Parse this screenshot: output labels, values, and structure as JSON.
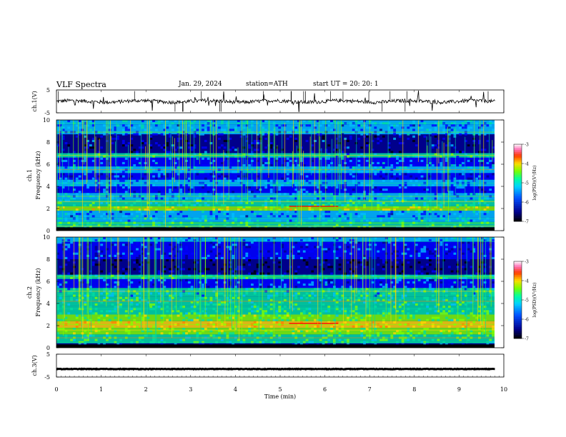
{
  "header": {
    "title": "VLF  Spectra",
    "date": "Jan. 29, 2024",
    "station": "station=ATH",
    "start": "start  UT  =    20: 20: 1"
  },
  "chart_data": [
    {
      "type": "line",
      "name": "ch1-timeseries",
      "ylabel": "ch.1(V)",
      "ylim": [
        -5,
        5
      ],
      "yticks": [
        "5",
        "-5"
      ],
      "xlim": [
        0,
        10
      ],
      "approx_level": 0
    },
    {
      "type": "heatmap",
      "name": "ch1-spectrogram",
      "ylabel": "ch.1\nFrequency (kHz)",
      "ylim": [
        0,
        10
      ],
      "yticks": [
        "0",
        "2",
        "4",
        "6",
        "8",
        "10"
      ],
      "xlim": [
        0,
        9.8
      ],
      "colorbar": {
        "label": "log(PSD)(V²/Hz)",
        "range": [
          -7,
          -3
        ],
        "ticks": [
          "-3",
          "-4",
          "-5",
          "-6",
          "-7"
        ]
      }
    },
    {
      "type": "heatmap",
      "name": "ch2-spectrogram",
      "ylabel": "ch.2\nFrequency (kHz)",
      "ylim": [
        0,
        10
      ],
      "yticks": [
        "0",
        "2",
        "4",
        "6",
        "8",
        "10"
      ],
      "xlim": [
        0,
        9.8
      ],
      "colorbar": {
        "label": "log(PSD)(V²/Hz)",
        "range": [
          -7,
          -3
        ],
        "ticks": [
          "-3",
          "-4",
          "-5",
          "-6",
          "-7"
        ]
      }
    },
    {
      "type": "line",
      "name": "ch3-timeseries",
      "ylabel": "ch.3(V)",
      "ylim": [
        -5,
        5
      ],
      "yticks": [
        "5",
        "-5"
      ],
      "xlim": [
        0,
        10
      ],
      "approx_level": -1.5
    }
  ],
  "xaxis": {
    "label": "Time  (min)",
    "ticks": [
      "0",
      "1",
      "2",
      "3",
      "4",
      "5",
      "6",
      "7",
      "8",
      "9",
      "10"
    ]
  },
  "colors": {
    "palette": [
      "#000000",
      "#00008b",
      "#0000ff",
      "#00bfff",
      "#00e0a0",
      "#7fff00",
      "#ffd700",
      "#ff7f00",
      "#ff0000",
      "#ff69b4",
      "#ffffff"
    ]
  }
}
